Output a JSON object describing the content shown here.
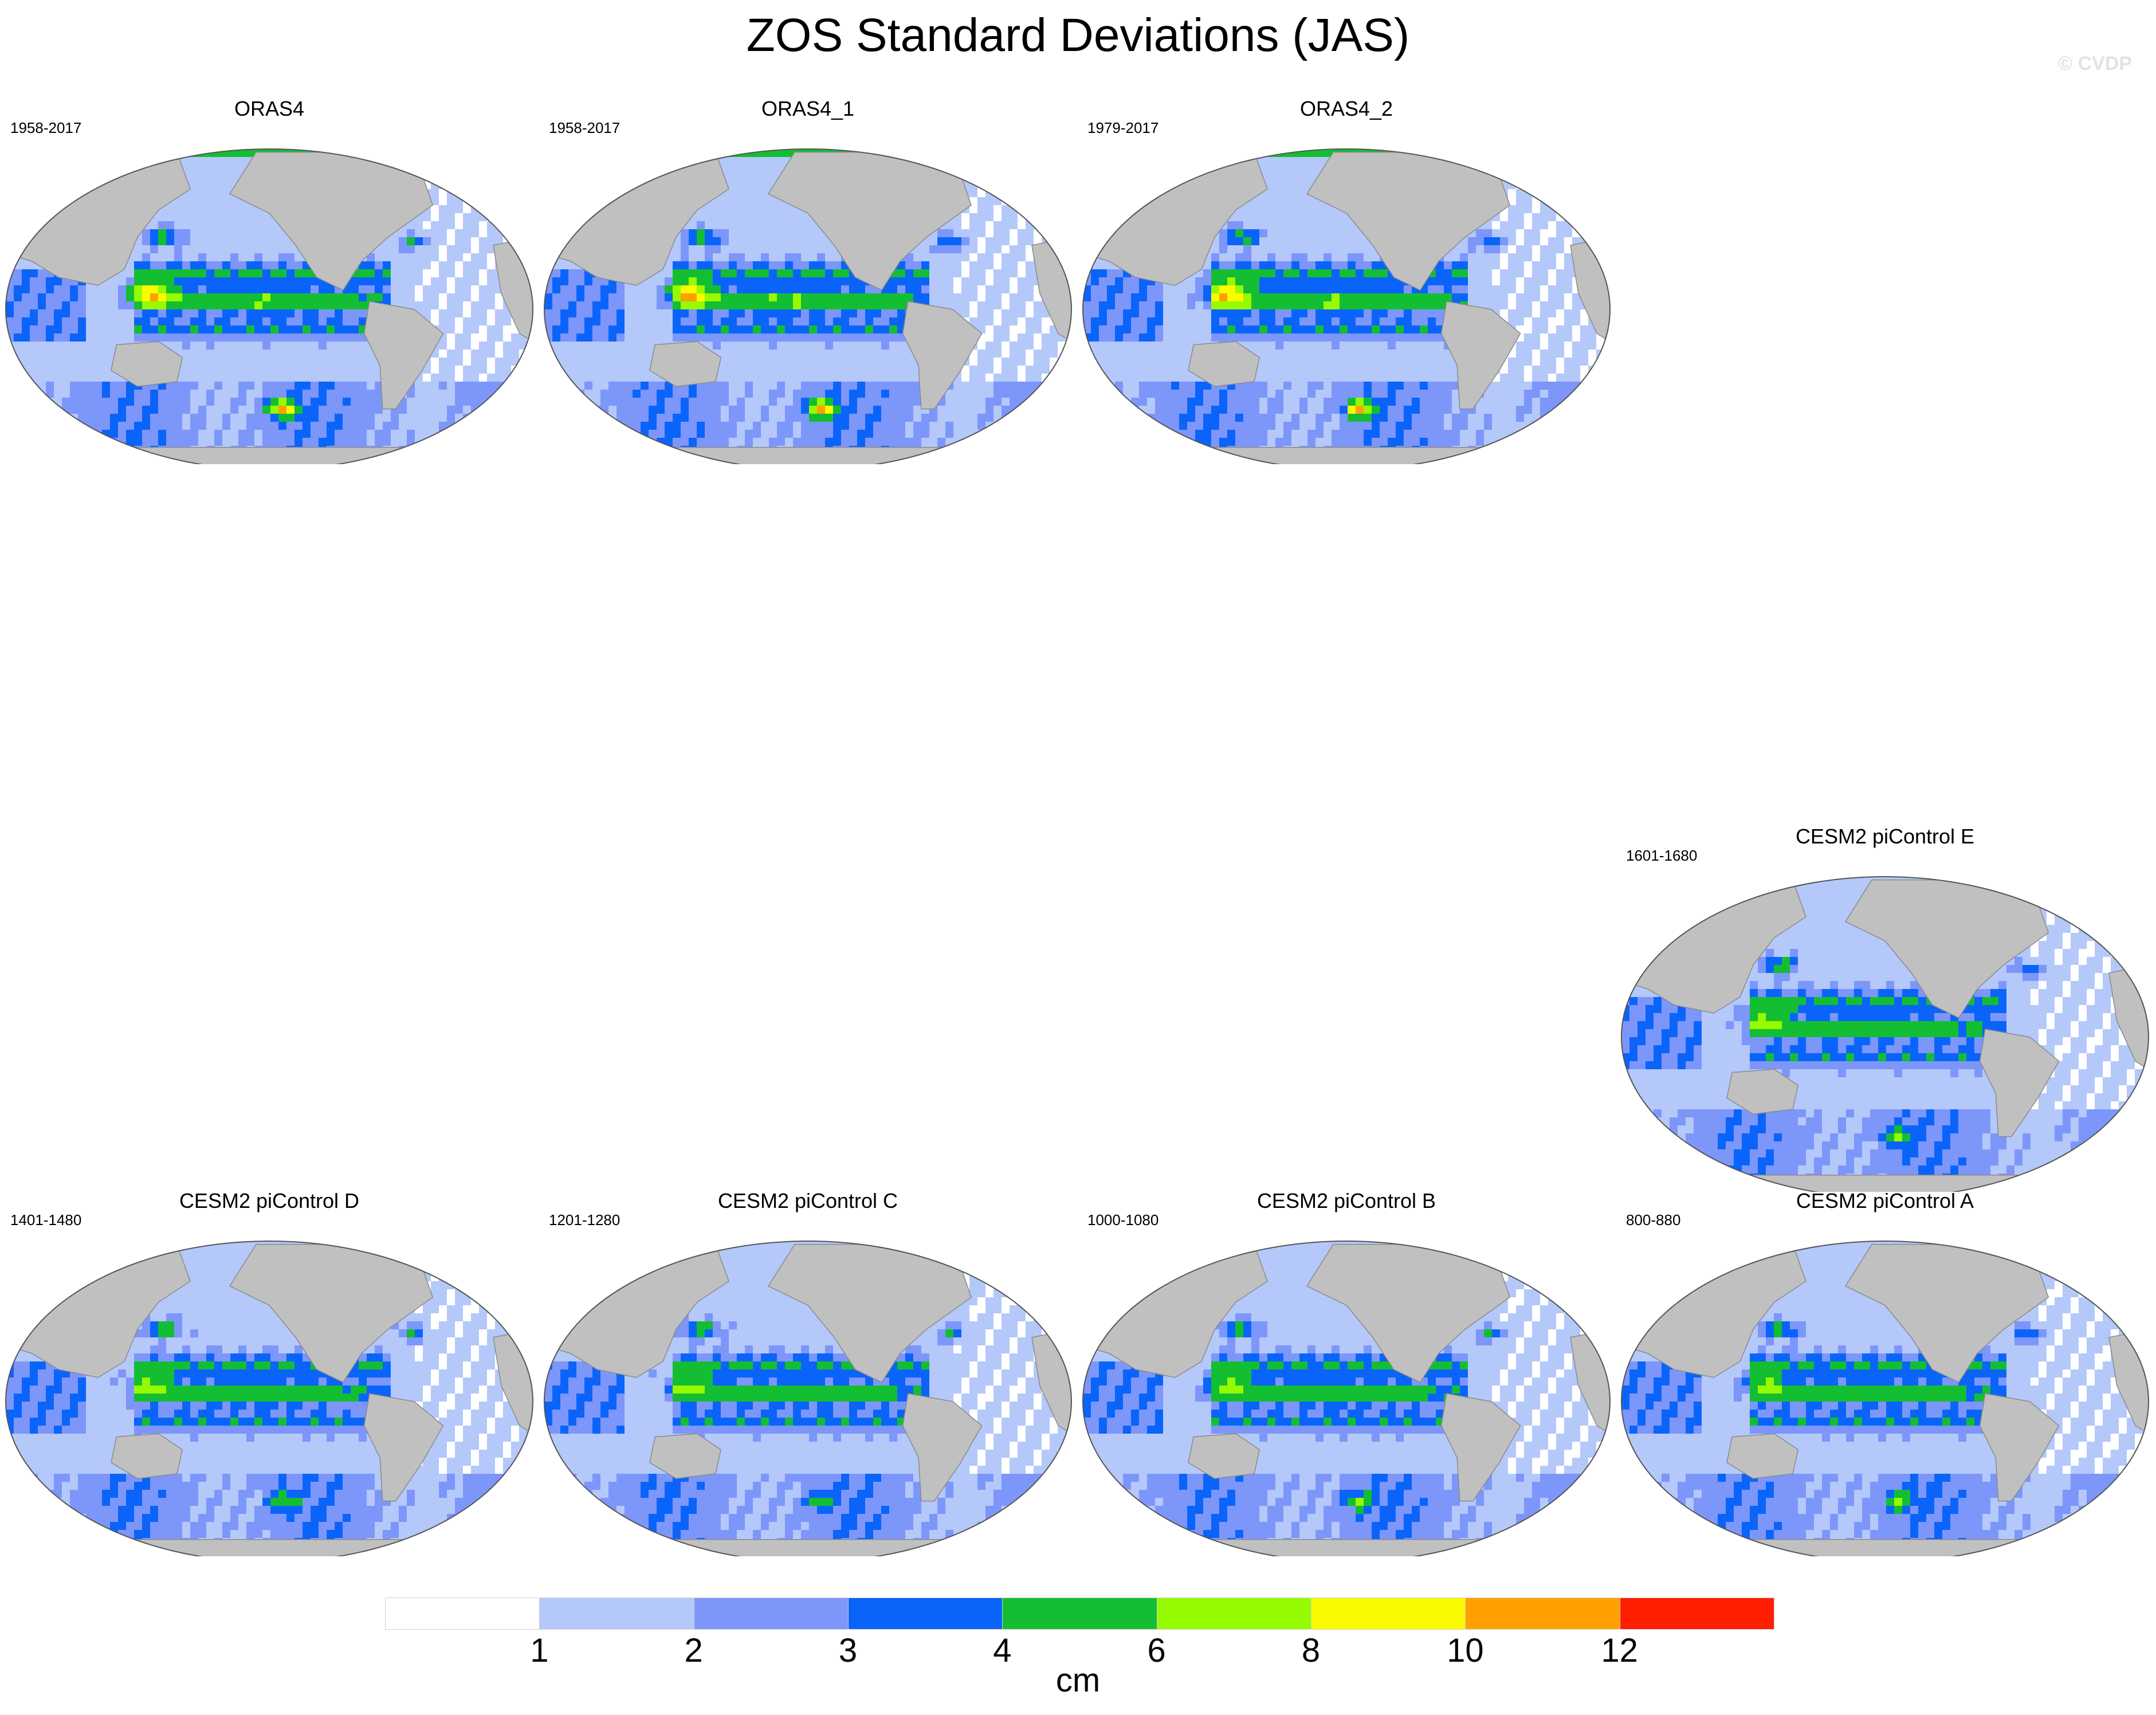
{
  "figure": {
    "title": "ZOS Standard Deviations (JAS)",
    "watermark": "© CVDP"
  },
  "panels": [
    {
      "id": "oras4",
      "title": "ORAS4",
      "period": "1958-2017",
      "style": "obs"
    },
    {
      "id": "oras4_1",
      "title": "ORAS4_1",
      "period": "1958-2017",
      "style": "obs"
    },
    {
      "id": "oras4_2",
      "title": "ORAS4_2",
      "period": "1979-2017",
      "style": "obs"
    },
    {
      "id": "picontrol_e",
      "title": "CESM2 piControl E",
      "period": "1601-1680",
      "style": "model"
    },
    {
      "id": "picontrol_d",
      "title": "CESM2 piControl D",
      "period": "1401-1480",
      "style": "model"
    },
    {
      "id": "picontrol_c",
      "title": "CESM2 piControl C",
      "period": "1201-1280",
      "style": "model"
    },
    {
      "id": "picontrol_b",
      "title": "CESM2 piControl B",
      "period": "1000-1080",
      "style": "model"
    },
    {
      "id": "picontrol_a",
      "title": "CESM2 piControl A",
      "period": "800-880",
      "style": "model"
    }
  ],
  "colorbar": {
    "units": "cm",
    "tick_labels": [
      "1",
      "2",
      "3",
      "4",
      "6",
      "8",
      "10",
      "12"
    ],
    "levels": [
      1,
      2,
      3,
      4,
      6,
      8,
      10,
      12
    ],
    "colors": [
      "#ffffff",
      "#b4c8fa",
      "#7d96fa",
      "#0a64fa",
      "#14be32",
      "#96fa00",
      "#fafa00",
      "#ffa000",
      "#ff1e00"
    ]
  },
  "map_colors": {
    "land": "#c0c0c0",
    "coast": "#8a8a8a"
  }
}
